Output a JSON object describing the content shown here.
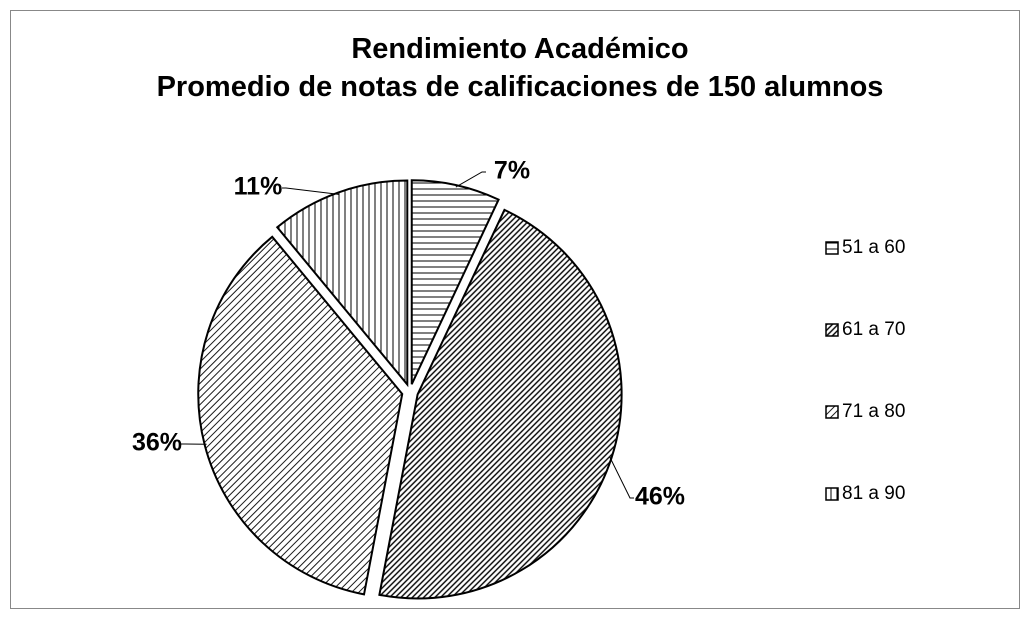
{
  "chart_data": {
    "type": "pie",
    "title": "Rendimiento Académico",
    "subtitle": "Promedio de notas de calificaciones de 150 alumnos",
    "categories": [
      "51 a 60",
      "61 a 70",
      "71 a 80",
      "81 a 90"
    ],
    "values": [
      7,
      46,
      36,
      11
    ],
    "value_labels": [
      "7%",
      "46%",
      "36%",
      "11%"
    ],
    "hatch": [
      "horizontal",
      "diagonal-dense",
      "diagonal",
      "vertical"
    ],
    "legend": "right"
  }
}
